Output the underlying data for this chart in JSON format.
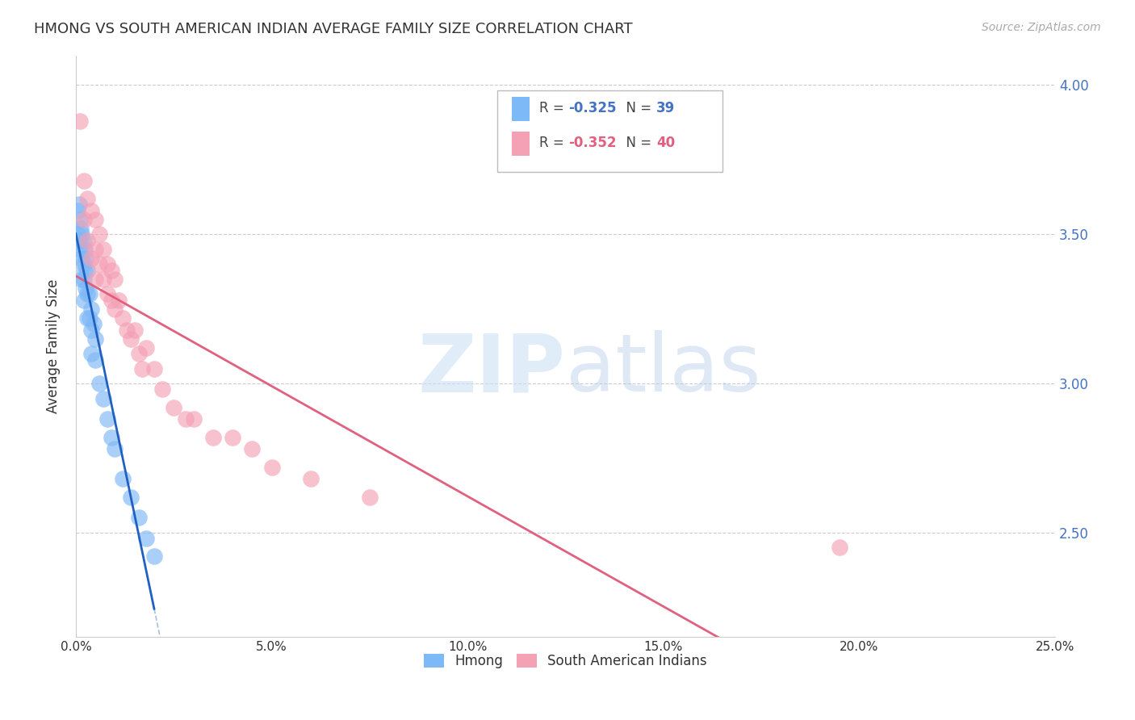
{
  "title": "HMONG VS SOUTH AMERICAN INDIAN AVERAGE FAMILY SIZE CORRELATION CHART",
  "source": "Source: ZipAtlas.com",
  "ylabel": "Average Family Size",
  "legend_label1": "Hmong",
  "legend_label2": "South American Indians",
  "hmong_color": "#7db8f7",
  "sai_color": "#f4a0b5",
  "hmong_line_color": "#2060c0",
  "sai_line_color": "#e06080",
  "hmong_x": [
    0.0005,
    0.0005,
    0.0008,
    0.001,
    0.001,
    0.0012,
    0.0012,
    0.0015,
    0.0015,
    0.0015,
    0.002,
    0.002,
    0.002,
    0.002,
    0.0022,
    0.0022,
    0.0025,
    0.0025,
    0.003,
    0.003,
    0.003,
    0.0035,
    0.0035,
    0.004,
    0.004,
    0.004,
    0.0045,
    0.005,
    0.005,
    0.006,
    0.007,
    0.008,
    0.009,
    0.01,
    0.012,
    0.014,
    0.016,
    0.018,
    0.02
  ],
  "hmong_y": [
    3.58,
    3.5,
    3.6,
    3.55,
    3.48,
    3.52,
    3.45,
    3.5,
    3.42,
    3.35,
    3.48,
    3.4,
    3.35,
    3.28,
    3.45,
    3.38,
    3.42,
    3.32,
    3.38,
    3.3,
    3.22,
    3.3,
    3.22,
    3.25,
    3.18,
    3.1,
    3.2,
    3.15,
    3.08,
    3.0,
    2.95,
    2.88,
    2.82,
    2.78,
    2.68,
    2.62,
    2.55,
    2.48,
    2.42
  ],
  "sai_x": [
    0.001,
    0.002,
    0.002,
    0.003,
    0.003,
    0.004,
    0.004,
    0.005,
    0.005,
    0.005,
    0.006,
    0.006,
    0.007,
    0.007,
    0.008,
    0.008,
    0.009,
    0.009,
    0.01,
    0.01,
    0.011,
    0.012,
    0.013,
    0.014,
    0.015,
    0.016,
    0.017,
    0.018,
    0.02,
    0.022,
    0.025,
    0.028,
    0.03,
    0.035,
    0.04,
    0.045,
    0.05,
    0.06,
    0.075,
    0.195
  ],
  "sai_y": [
    3.88,
    3.68,
    3.55,
    3.62,
    3.48,
    3.58,
    3.42,
    3.55,
    3.45,
    3.35,
    3.5,
    3.4,
    3.45,
    3.35,
    3.4,
    3.3,
    3.38,
    3.28,
    3.35,
    3.25,
    3.28,
    3.22,
    3.18,
    3.15,
    3.18,
    3.1,
    3.05,
    3.12,
    3.05,
    2.98,
    2.92,
    2.88,
    2.88,
    2.82,
    2.82,
    2.78,
    2.72,
    2.68,
    2.62,
    2.45
  ],
  "right_yticks": [
    2.5,
    3.0,
    3.5,
    4.0
  ],
  "xlim": [
    0.0,
    0.25
  ],
  "ylim": [
    2.15,
    4.1
  ]
}
